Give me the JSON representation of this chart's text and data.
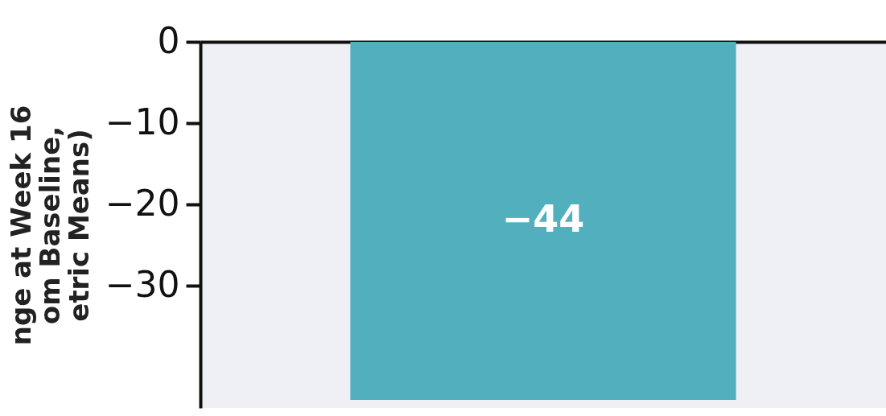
{
  "chart_data": {
    "type": "bar",
    "ylabel": "nge at Week 16\nom Baseline,\netric Means)",
    "categories": [
      null
    ],
    "values": [
      -44
    ],
    "color": "#52b0be",
    "ylim": [
      -45,
      0
    ],
    "yticks": [
      0,
      -10,
      -20,
      -30
    ],
    "data_labels": true,
    "grid": false
  }
}
